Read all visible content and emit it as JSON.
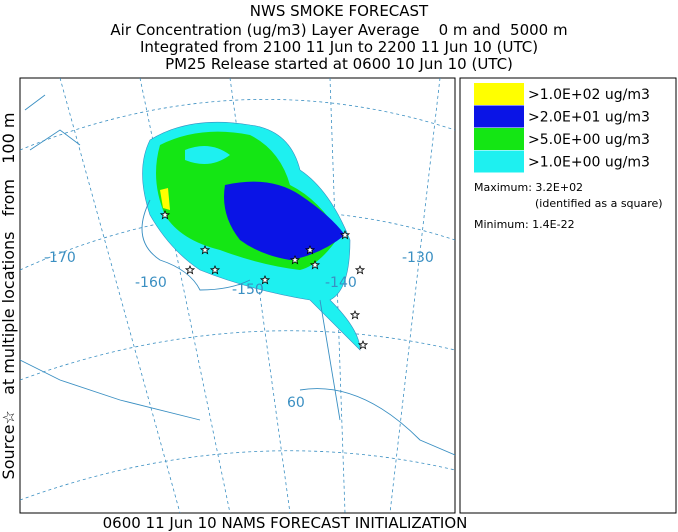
{
  "header": {
    "lines": [
      "NWS SMOKE FORECAST",
      "Air Concentration (ug/m3) Layer Average    0 m and  5000 m",
      "Integrated from 2100 11 Jun to 2200 11 Jun 10 (UTC)",
      "PM25 Release started at 0600 10 Jun 10 (UTC)"
    ]
  },
  "side_label": "Source☆   at multiple locations   from   100 m",
  "map": {
    "graticule_labels": [
      "-170",
      "-160",
      "-150",
      "-140",
      "-130",
      "60"
    ]
  },
  "legend": {
    "items": [
      {
        "label": ">1.0E+02 ug/m3",
        "color": "#ffff00"
      },
      {
        "label": ">2.0E+01 ug/m3",
        "color": "#0a14e6"
      },
      {
        "label": ">5.0E+00 ug/m3",
        "color": "#14e614"
      },
      {
        "label": ">1.0E+00 ug/m3",
        "color": "#1ef0f0"
      }
    ],
    "maximum": "Maximum: 3.2E+02",
    "maximum_note": "(identified as a square)",
    "minimum": "Minimum: 1.4E-22"
  },
  "footer": "0600 11 Jun 10 NAMS FORECAST INITIALIZATION"
}
